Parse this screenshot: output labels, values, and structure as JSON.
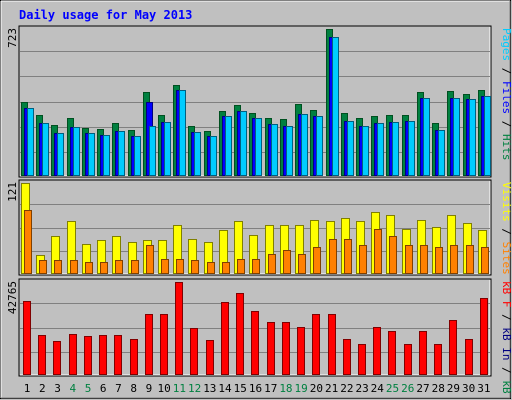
{
  "title": "Daily usage for May 2013",
  "colors": {
    "background": "#c0c0c0",
    "pages": "#00ccff",
    "files": "#0000ff",
    "hits": "#008040",
    "visits": "#ffff00",
    "sites": "#ff8000",
    "kbin": "#ff0000",
    "title": "#0000ff"
  },
  "chart_data": [
    {
      "type": "bar",
      "panel": "top",
      "scale_label": "723",
      "ylim": [
        0,
        723
      ],
      "right_label_parts": [
        {
          "text": "Pages",
          "color": "#00ccff"
        },
        {
          "text": " / ",
          "color": "#000000"
        },
        {
          "text": "Files",
          "color": "#0000ff"
        },
        {
          "text": " / ",
          "color": "#000000"
        },
        {
          "text": "Hits",
          "color": "#008040"
        }
      ],
      "categories": [
        "1",
        "2",
        "3",
        "4",
        "5",
        "6",
        "7",
        "8",
        "9",
        "10",
        "11",
        "12",
        "13",
        "14",
        "15",
        "16",
        "17",
        "18",
        "19",
        "20",
        "21",
        "22",
        "23",
        "24",
        "25",
        "26",
        "27",
        "28",
        "29",
        "30",
        "31"
      ],
      "series": [
        {
          "name": "Hits",
          "values": [
            362,
            300,
            249,
            283,
            238,
            231,
            262,
            226,
            413,
            300,
            448,
            246,
            222,
            322,
            348,
            311,
            283,
            278,
            355,
            326,
            723,
            308,
            283,
            293,
            300,
            298,
            412,
            262,
            416,
            404,
            422
          ]
        },
        {
          "name": "Files",
          "values": [
            333,
            262,
            212,
            242,
            212,
            200,
            222,
            197,
            362,
            267,
            423,
            214,
            197,
            293,
            321,
            283,
            254,
            246,
            306,
            296,
            683,
            272,
            245,
            262,
            267,
            272,
            382,
            226,
            385,
            379,
            393
          ]
        },
        {
          "name": "Pages",
          "values": [
            333,
            262,
            212,
            242,
            212,
            200,
            222,
            197,
            248,
            267,
            423,
            214,
            197,
            293,
            321,
            283,
            254,
            246,
            306,
            296,
            683,
            272,
            245,
            262,
            267,
            272,
            382,
            226,
            385,
            379,
            393
          ]
        }
      ]
    },
    {
      "type": "bar",
      "panel": "middle",
      "scale_label": "121",
      "ylim": [
        0,
        121
      ],
      "right_label_parts": [
        {
          "text": "Visits",
          "color": "#ffff00"
        },
        {
          "text": " / ",
          "color": "#000000"
        },
        {
          "text": "Sites",
          "color": "#ff8000"
        }
      ],
      "categories": [
        "1",
        "2",
        "3",
        "4",
        "5",
        "6",
        "7",
        "8",
        "9",
        "10",
        "11",
        "12",
        "13",
        "14",
        "15",
        "16",
        "17",
        "18",
        "19",
        "20",
        "21",
        "22",
        "23",
        "24",
        "25",
        "26",
        "27",
        "28",
        "29",
        "30",
        "31"
      ],
      "series": [
        {
          "name": "Visits",
          "values": [
            121,
            25,
            50,
            71,
            40,
            45,
            50,
            42,
            45,
            45,
            65,
            46,
            42,
            58,
            70,
            52,
            65,
            65,
            65,
            72,
            70,
            75,
            70,
            82,
            78,
            60,
            72,
            62,
            78,
            68,
            58
          ]
        },
        {
          "name": "Sites",
          "values": [
            85,
            19,
            19,
            18,
            16,
            16,
            18,
            18,
            38,
            20,
            20,
            18,
            16,
            16,
            20,
            20,
            26,
            32,
            26,
            36,
            46,
            46,
            38,
            60,
            50,
            38,
            38,
            36,
            38,
            38,
            36
          ]
        }
      ]
    },
    {
      "type": "bar",
      "panel": "bottom",
      "scale_label": "42765",
      "ylim": [
        0,
        42765
      ],
      "right_label_parts": [
        {
          "text": "kB F",
          "color": "#ff0000"
        },
        {
          "text": " / ",
          "color": "#000000"
        },
        {
          "text": "kB In",
          "color": "#000080"
        },
        {
          "text": " / ",
          "color": "#000000"
        },
        {
          "text": "kB Out",
          "color": "#008040"
        }
      ],
      "categories": [
        "1",
        "2",
        "3",
        "4",
        "5",
        "6",
        "7",
        "8",
        "9",
        "10",
        "11",
        "12",
        "13",
        "14",
        "15",
        "16",
        "17",
        "18",
        "19",
        "20",
        "21",
        "22",
        "23",
        "24",
        "25",
        "26",
        "27",
        "28",
        "29",
        "30",
        "31"
      ],
      "series": [
        {
          "name": "kB F",
          "values": [
            34000,
            18500,
            15500,
            19000,
            18000,
            18500,
            18500,
            16500,
            28000,
            28000,
            42765,
            21500,
            16000,
            33500,
            37800,
            29200,
            24200,
            24200,
            22200,
            28200,
            28200,
            16500,
            14400,
            22200,
            20100,
            14400,
            20100,
            14400,
            25300,
            16500,
            35500
          ]
        }
      ],
      "x_tick_colors": [
        "#000000",
        "#000000",
        "#000000",
        "#008040",
        "#008040",
        "#000000",
        "#000000",
        "#000000",
        "#000000",
        "#000000",
        "#008040",
        "#008040",
        "#000000",
        "#000000",
        "#000000",
        "#000000",
        "#000000",
        "#008040",
        "#008040",
        "#000000",
        "#000000",
        "#000000",
        "#000000",
        "#000000",
        "#008040",
        "#008040",
        "#000000",
        "#000000",
        "#000000",
        "#000000",
        "#000000"
      ]
    }
  ]
}
